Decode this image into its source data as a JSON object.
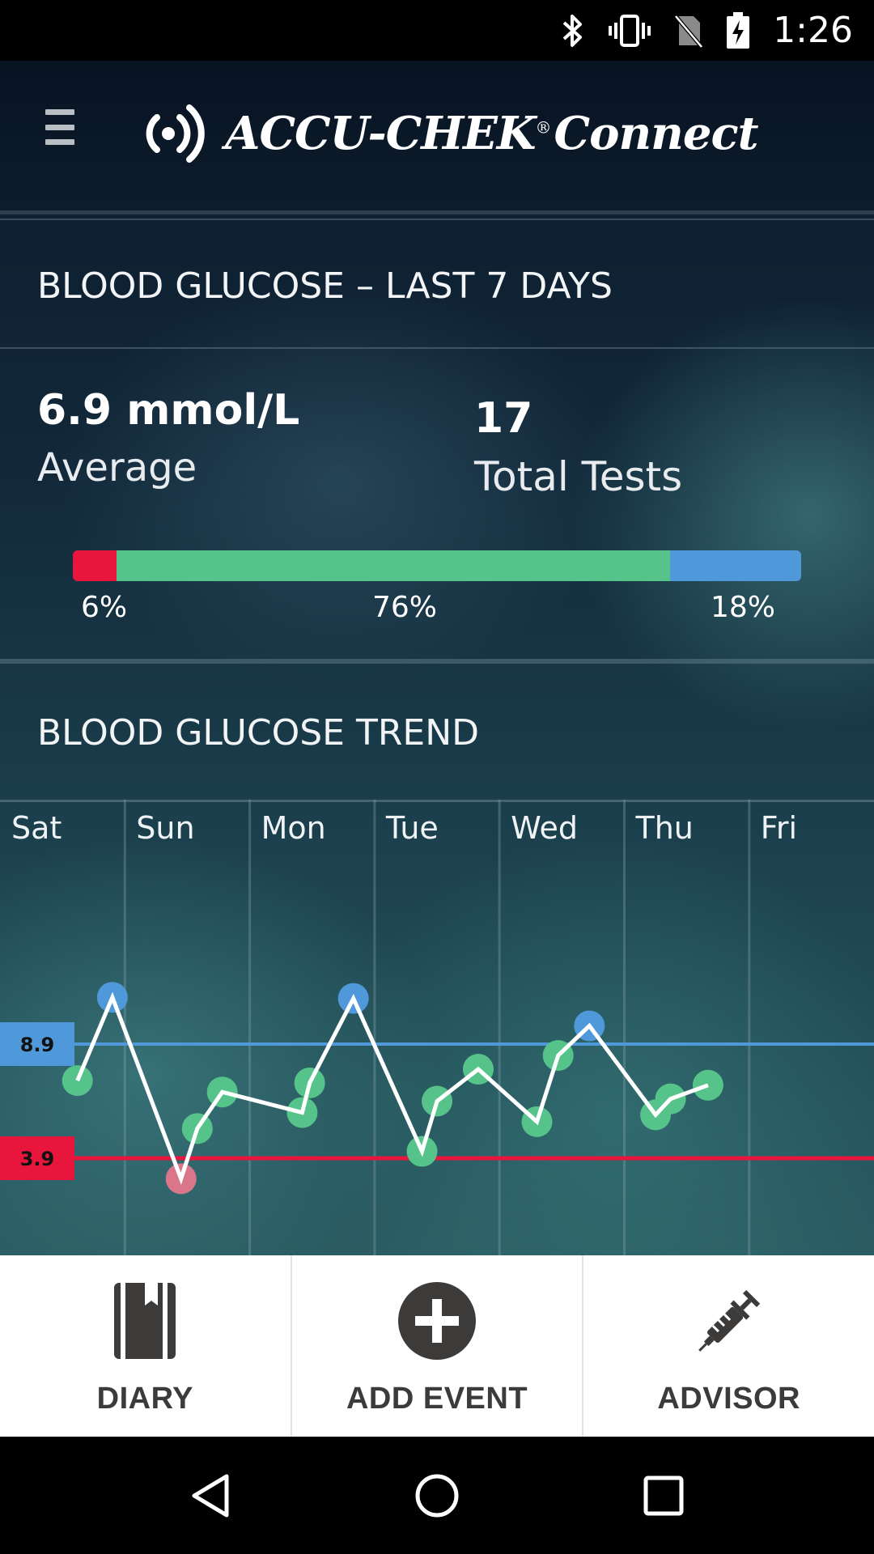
{
  "status_bar": {
    "time": "1:26"
  },
  "header": {
    "brand_main": "ACCU-CHEK",
    "brand_reg": "®",
    "brand_sub": "Connect"
  },
  "summary": {
    "title": "BLOOD GLUCOSE – LAST 7 DAYS",
    "average_value": "6.9 mmol/L",
    "average_label": "Average",
    "total_tests_value": "17",
    "total_tests_label": "Total Tests",
    "distribution": {
      "low_pct": "6%",
      "in_range_pct": "76%",
      "high_pct": "18%",
      "low_fraction": 0.06,
      "in_range_fraction": 0.76,
      "high_fraction": 0.18
    }
  },
  "trend": {
    "title": "BLOOD GLUCOSE TREND",
    "days": [
      "Sat",
      "Sun",
      "Mon",
      "Tue",
      "Wed",
      "Thu",
      "Fri"
    ],
    "upper_limit_label": "8.9",
    "lower_limit_label": "3.9"
  },
  "chart_data": {
    "type": "line",
    "title": "BLOOD GLUCOSE TREND",
    "categories": [
      "Sat",
      "Sun",
      "Mon",
      "Tue",
      "Wed",
      "Thu",
      "Fri"
    ],
    "xlim": [
      0,
      7
    ],
    "ylim": [
      0,
      20
    ],
    "thresholds": {
      "upper": 8.9,
      "lower": 3.9
    },
    "points": [
      {
        "x": 0.62,
        "y": 7.3,
        "status": "in-range"
      },
      {
        "x": 0.9,
        "y": 10.95,
        "status": "high"
      },
      {
        "x": 1.45,
        "y": 3.0,
        "status": "low"
      },
      {
        "x": 1.58,
        "y": 5.2,
        "status": "in-range"
      },
      {
        "x": 1.78,
        "y": 6.8,
        "status": "in-range"
      },
      {
        "x": 2.42,
        "y": 5.9,
        "status": "in-range"
      },
      {
        "x": 2.48,
        "y": 7.2,
        "status": "in-range"
      },
      {
        "x": 2.83,
        "y": 10.9,
        "status": "high"
      },
      {
        "x": 3.38,
        "y": 4.2,
        "status": "in-range"
      },
      {
        "x": 3.5,
        "y": 6.4,
        "status": "in-range"
      },
      {
        "x": 3.83,
        "y": 7.8,
        "status": "in-range"
      },
      {
        "x": 4.3,
        "y": 5.5,
        "status": "in-range"
      },
      {
        "x": 4.47,
        "y": 8.4,
        "status": "in-range"
      },
      {
        "x": 4.72,
        "y": 9.7,
        "status": "high"
      },
      {
        "x": 5.25,
        "y": 5.8,
        "status": "in-range"
      },
      {
        "x": 5.37,
        "y": 6.5,
        "status": "in-range"
      },
      {
        "x": 5.67,
        "y": 7.1,
        "status": "in-range"
      }
    ]
  },
  "bottom_nav": {
    "diary": "DIARY",
    "add_event": "ADD EVENT",
    "advisor": "ADVISOR"
  },
  "colors": {
    "low": "#e8163c",
    "in_range": "#56c48a",
    "high": "#4f98d9",
    "line": "#ffffff",
    "nav_text": "#3d3a3a"
  }
}
